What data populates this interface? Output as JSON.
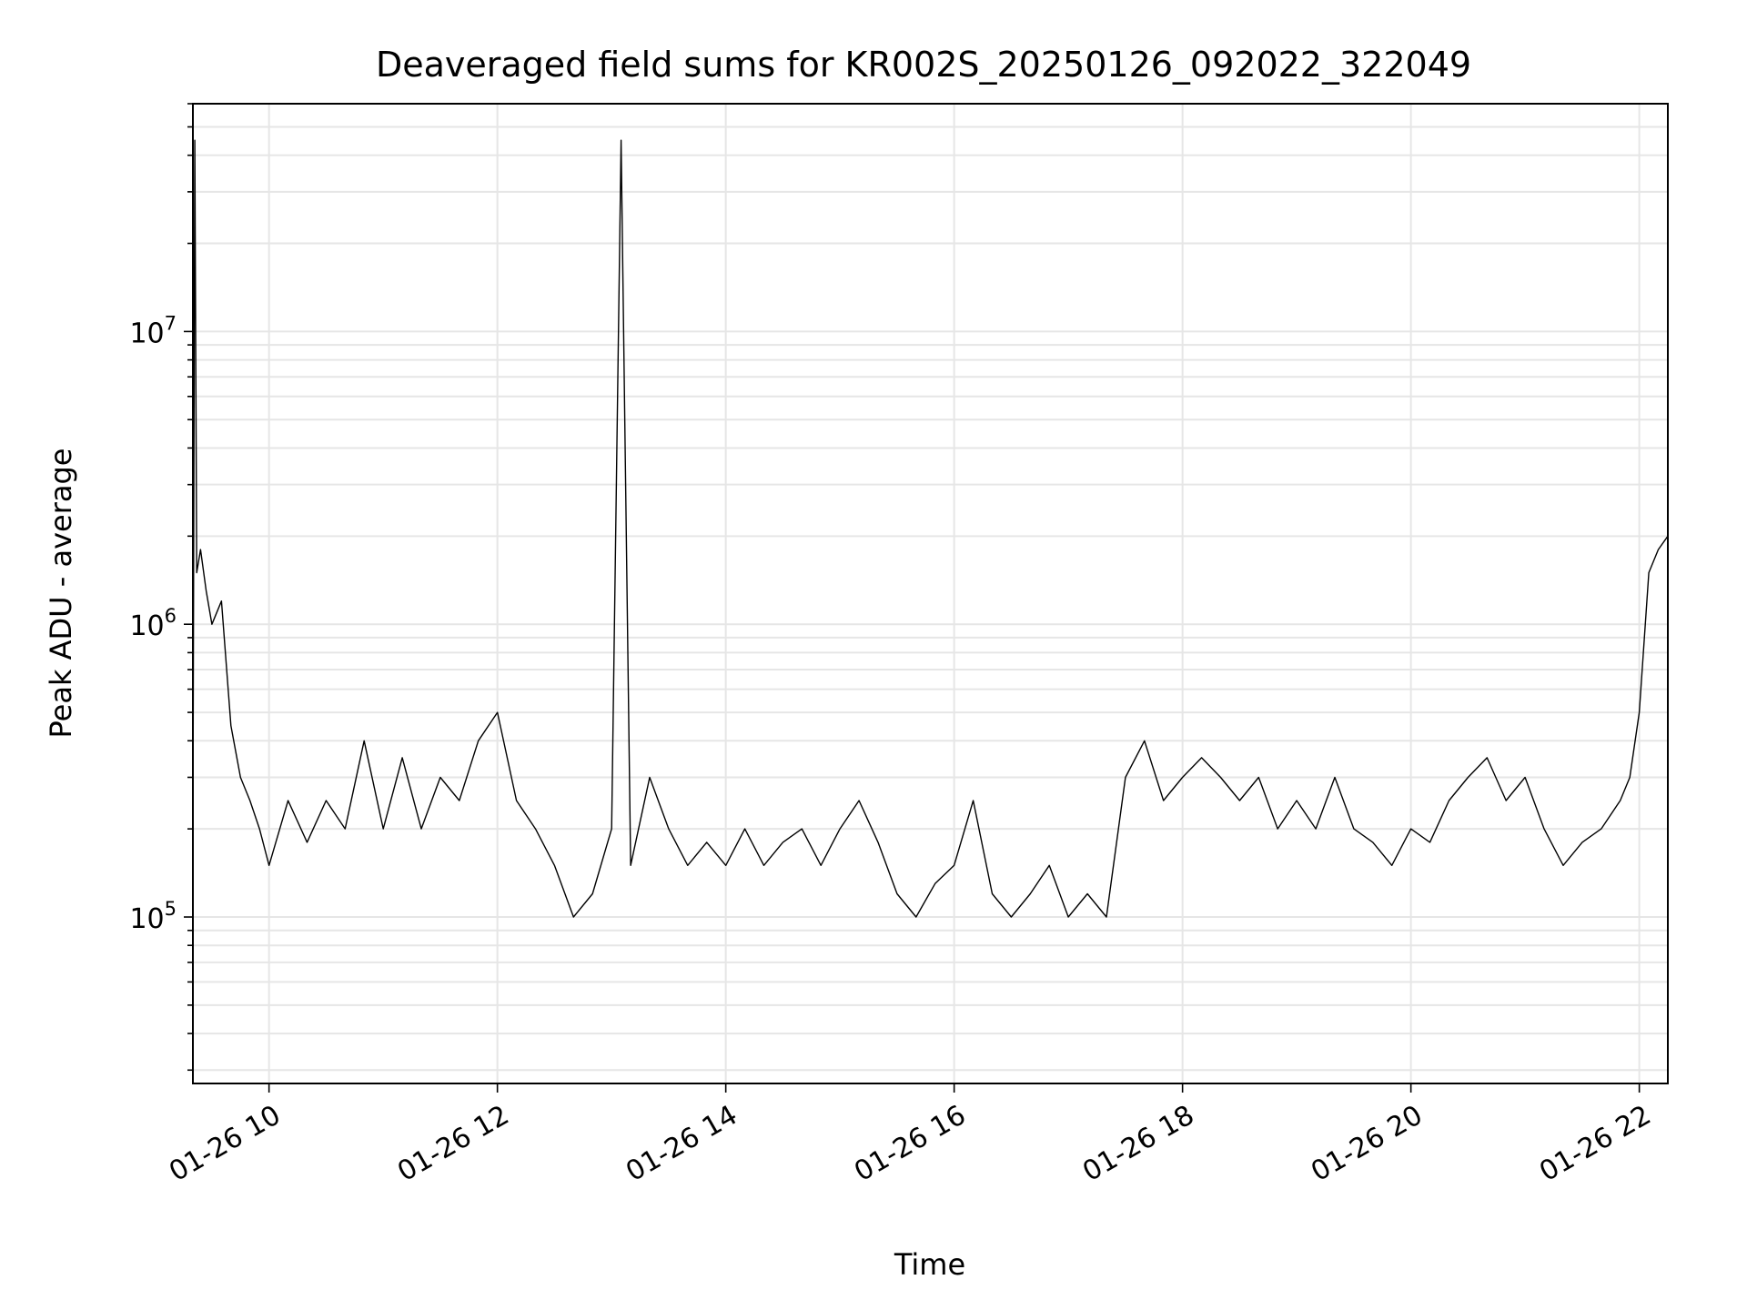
{
  "chart_data": {
    "type": "line",
    "title": "Deaveraged field sums for KR002S_20250126_092022_322049",
    "xlabel": "Time",
    "ylabel": "Peak ADU - average",
    "y_scale": "log",
    "grid": true,
    "line_color": "#000000",
    "xlim": [
      "2025-01-26 09:20",
      "2025-01-26 22:15"
    ],
    "ylim": [
      27000,
      60000000
    ],
    "x_ticks": [
      "01-26 10",
      "01-26 12",
      "01-26 14",
      "01-26 16",
      "01-26 18",
      "01-26 20",
      "01-26 22"
    ],
    "y_ticks": [
      {
        "base": "10",
        "exp": "5",
        "value": 100000
      },
      {
        "base": "10",
        "exp": "6",
        "value": 1000000
      },
      {
        "base": "10",
        "exp": "7",
        "value": 10000000
      }
    ],
    "series": [
      {
        "x": [
          "2025-01-26 09:20",
          "2025-01-26 09:21",
          "2025-01-26 09:22",
          "2025-01-26 09:24",
          "2025-01-26 09:27",
          "2025-01-26 09:30",
          "2025-01-26 09:35",
          "2025-01-26 09:40",
          "2025-01-26 09:45",
          "2025-01-26 09:50",
          "2025-01-26 09:55",
          "2025-01-26 10:00",
          "2025-01-26 10:10",
          "2025-01-26 10:20",
          "2025-01-26 10:30",
          "2025-01-26 10:40",
          "2025-01-26 10:50",
          "2025-01-26 11:00",
          "2025-01-26 11:10",
          "2025-01-26 11:20",
          "2025-01-26 11:30",
          "2025-01-26 11:40",
          "2025-01-26 11:50",
          "2025-01-26 12:00",
          "2025-01-26 12:10",
          "2025-01-26 12:20",
          "2025-01-26 12:30",
          "2025-01-26 12:40",
          "2025-01-26 12:50",
          "2025-01-26 13:00",
          "2025-01-26 13:05",
          "2025-01-26 13:10",
          "2025-01-26 13:20",
          "2025-01-26 13:30",
          "2025-01-26 13:40",
          "2025-01-26 13:50",
          "2025-01-26 14:00",
          "2025-01-26 14:10",
          "2025-01-26 14:20",
          "2025-01-26 14:30",
          "2025-01-26 14:40",
          "2025-01-26 14:50",
          "2025-01-26 15:00",
          "2025-01-26 15:10",
          "2025-01-26 15:20",
          "2025-01-26 15:30",
          "2025-01-26 15:40",
          "2025-01-26 15:50",
          "2025-01-26 16:00",
          "2025-01-26 16:10",
          "2025-01-26 16:20",
          "2025-01-26 16:30",
          "2025-01-26 16:40",
          "2025-01-26 16:50",
          "2025-01-26 17:00",
          "2025-01-26 17:10",
          "2025-01-26 17:20",
          "2025-01-26 17:30",
          "2025-01-26 17:40",
          "2025-01-26 17:50",
          "2025-01-26 18:00",
          "2025-01-26 18:10",
          "2025-01-26 18:20",
          "2025-01-26 18:30",
          "2025-01-26 18:40",
          "2025-01-26 18:50",
          "2025-01-26 19:00",
          "2025-01-26 19:10",
          "2025-01-26 19:20",
          "2025-01-26 19:30",
          "2025-01-26 19:40",
          "2025-01-26 19:50",
          "2025-01-26 20:00",
          "2025-01-26 20:10",
          "2025-01-26 20:20",
          "2025-01-26 20:30",
          "2025-01-26 20:40",
          "2025-01-26 20:50",
          "2025-01-26 21:00",
          "2025-01-26 21:10",
          "2025-01-26 21:20",
          "2025-01-26 21:30",
          "2025-01-26 21:40",
          "2025-01-26 21:50",
          "2025-01-26 21:55",
          "2025-01-26 22:00",
          "2025-01-26 22:05",
          "2025-01-26 22:10",
          "2025-01-26 22:15"
        ],
        "y": [
          200000,
          45000000,
          1500000,
          1800000,
          1300000,
          1000000,
          1200000,
          450000,
          300000,
          250000,
          200000,
          150000,
          250000,
          180000,
          250000,
          200000,
          400000,
          200000,
          350000,
          200000,
          300000,
          250000,
          400000,
          500000,
          250000,
          200000,
          150000,
          100000,
          120000,
          200000,
          45000000,
          150000,
          300000,
          200000,
          150000,
          180000,
          150000,
          200000,
          150000,
          180000,
          200000,
          150000,
          200000,
          250000,
          180000,
          120000,
          100000,
          130000,
          150000,
          250000,
          120000,
          100000,
          120000,
          150000,
          100000,
          120000,
          100000,
          300000,
          400000,
          250000,
          300000,
          350000,
          300000,
          250000,
          300000,
          200000,
          250000,
          200000,
          300000,
          200000,
          180000,
          150000,
          200000,
          180000,
          250000,
          300000,
          350000,
          250000,
          300000,
          200000,
          150000,
          180000,
          200000,
          250000,
          300000,
          500000,
          1500000,
          1800000,
          2000000
        ]
      }
    ]
  }
}
